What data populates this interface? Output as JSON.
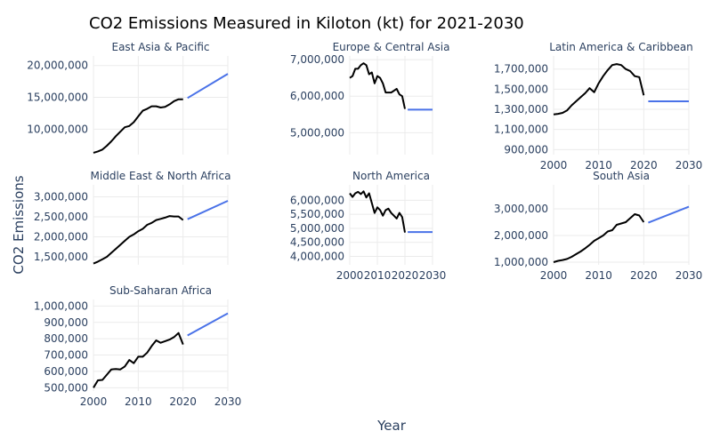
{
  "chart_data": {
    "type": "line",
    "title": "CO2 Emissions Measured in Kiloton (kt) for 2021-2030",
    "xlabel": "Year",
    "ylabel": "CO2 Emissions",
    "xlim": [
      2000,
      2030
    ],
    "x_ticks": [
      2000,
      2010,
      2020,
      2030
    ],
    "grid": true,
    "colors": {
      "history": "#000000",
      "forecast": "#4a72e8"
    },
    "panels": [
      {
        "name": "East Asia & Pacific",
        "ylim": [
          6000000,
          21500000
        ],
        "y_ticks": [
          10000000,
          15000000,
          20000000
        ],
        "y_tick_labels": [
          "10,000,000",
          "15,000,000",
          "20,000,000"
        ],
        "history": {
          "x": [
            2000,
            2001,
            2002,
            2003,
            2004,
            2005,
            2006,
            2007,
            2008,
            2009,
            2010,
            2011,
            2012,
            2013,
            2014,
            2015,
            2016,
            2017,
            2018,
            2019,
            2020
          ],
          "y": [
            6300000,
            6500000,
            6800000,
            7400000,
            8100000,
            8900000,
            9600000,
            10300000,
            10500000,
            11100000,
            12000000,
            12900000,
            13200000,
            13600000,
            13600000,
            13400000,
            13500000,
            13900000,
            14400000,
            14700000,
            14700000
          ]
        },
        "forecast": {
          "x": [
            2021,
            2030
          ],
          "y": [
            14900000,
            18700000
          ]
        }
      },
      {
        "name": "Europe & Central Asia",
        "ylim": [
          4400000,
          7100000
        ],
        "y_ticks": [
          5000000,
          6000000,
          7000000
        ],
        "y_tick_labels": [
          "5,000,000",
          "6,000,000",
          "7,000,000"
        ],
        "history": {
          "x": [
            2000,
            2001,
            2002,
            2003,
            2004,
            2005,
            2006,
            2007,
            2008,
            2009,
            2010,
            2011,
            2012,
            2013,
            2014,
            2015,
            2016,
            2017,
            2018,
            2019,
            2020
          ],
          "y": [
            6500000,
            6550000,
            6750000,
            6750000,
            6850000,
            6900000,
            6850000,
            6600000,
            6650000,
            6350000,
            6550000,
            6500000,
            6350000,
            6100000,
            6100000,
            6100000,
            6150000,
            6200000,
            6050000,
            6000000,
            5650000
          ]
        },
        "forecast": {
          "x": [
            2021,
            2030
          ],
          "y": [
            5630000,
            5630000
          ]
        }
      },
      {
        "name": "Latin America & Caribbean",
        "ylim": [
          850000,
          1830000
        ],
        "y_ticks": [
          900000,
          1100000,
          1300000,
          1500000,
          1700000
        ],
        "y_tick_labels": [
          "900,000",
          "1,100,000",
          "1,300,000",
          "1,500,000",
          "1,700,000"
        ],
        "history": {
          "x": [
            2000,
            2001,
            2002,
            2003,
            2004,
            2005,
            2006,
            2007,
            2008,
            2009,
            2010,
            2011,
            2012,
            2013,
            2014,
            2015,
            2016,
            2017,
            2018,
            2019,
            2020
          ],
          "y": [
            1250000,
            1255000,
            1265000,
            1290000,
            1340000,
            1380000,
            1420000,
            1460000,
            1510000,
            1470000,
            1560000,
            1630000,
            1690000,
            1740000,
            1750000,
            1740000,
            1700000,
            1680000,
            1630000,
            1620000,
            1440000
          ]
        },
        "forecast": {
          "x": [
            2021,
            2030
          ],
          "y": [
            1380000,
            1380000
          ]
        }
      },
      {
        "name": "Middle East & North Africa",
        "ylim": [
          1300000,
          3300000
        ],
        "y_ticks": [
          1500000,
          2000000,
          2500000,
          3000000
        ],
        "y_tick_labels": [
          "1,500,000",
          "2,000,000",
          "2,500,000",
          "3,000,000"
        ],
        "history": {
          "x": [
            2000,
            2001,
            2002,
            2003,
            2004,
            2005,
            2006,
            2007,
            2008,
            2009,
            2010,
            2011,
            2012,
            2013,
            2014,
            2015,
            2016,
            2017,
            2018,
            2019,
            2020
          ],
          "y": [
            1330000,
            1380000,
            1440000,
            1500000,
            1600000,
            1700000,
            1800000,
            1900000,
            2000000,
            2060000,
            2140000,
            2200000,
            2300000,
            2350000,
            2420000,
            2450000,
            2480000,
            2520000,
            2510000,
            2510000,
            2420000
          ]
        },
        "forecast": {
          "x": [
            2021,
            2030
          ],
          "y": [
            2440000,
            2900000
          ]
        }
      },
      {
        "name": "North America",
        "ylim": [
          3700000,
          6550000
        ],
        "y_ticks": [
          4000000,
          4500000,
          5000000,
          5500000,
          6000000
        ],
        "y_tick_labels": [
          "4,000,000",
          "4,500,000",
          "5,000,000",
          "5,500,000",
          "6,000,000"
        ],
        "history": {
          "x": [
            2000,
            2001,
            2002,
            2003,
            2004,
            2005,
            2006,
            2007,
            2008,
            2009,
            2010,
            2011,
            2012,
            2013,
            2014,
            2015,
            2016,
            2017,
            2018,
            2019,
            2020
          ],
          "y": [
            6250000,
            6120000,
            6250000,
            6300000,
            6220000,
            6320000,
            6100000,
            6250000,
            5900000,
            5550000,
            5750000,
            5650000,
            5450000,
            5650000,
            5700000,
            5550000,
            5450000,
            5350000,
            5550000,
            5400000,
            4850000
          ]
        },
        "forecast": {
          "x": [
            2021,
            2030
          ],
          "y": [
            4870000,
            4870000
          ]
        }
      },
      {
        "name": "South Asia",
        "ylim": [
          900000,
          3900000
        ],
        "y_ticks": [
          1000000,
          2000000,
          3000000
        ],
        "y_tick_labels": [
          "1,000,000",
          "2,000,000",
          "3,000,000"
        ],
        "history": {
          "x": [
            2000,
            2001,
            2002,
            2003,
            2004,
            2005,
            2006,
            2007,
            2008,
            2009,
            2010,
            2011,
            2012,
            2013,
            2014,
            2015,
            2016,
            2017,
            2018,
            2019,
            2020
          ],
          "y": [
            1000000,
            1050000,
            1080000,
            1120000,
            1200000,
            1300000,
            1400000,
            1520000,
            1650000,
            1800000,
            1900000,
            2000000,
            2150000,
            2200000,
            2400000,
            2450000,
            2500000,
            2650000,
            2800000,
            2750000,
            2500000
          ]
        },
        "forecast": {
          "x": [
            2021,
            2030
          ],
          "y": [
            2480000,
            3080000
          ]
        }
      },
      {
        "name": "Sub-Saharan Africa",
        "ylim": [
          480000,
          1040000
        ],
        "y_ticks": [
          500000,
          600000,
          700000,
          800000,
          900000,
          1000000
        ],
        "y_tick_labels": [
          "500,000",
          "600,000",
          "700,000",
          "800,000",
          "900,000",
          "1,000,000"
        ],
        "history": {
          "x": [
            2000,
            2001,
            2002,
            2003,
            2004,
            2005,
            2006,
            2007,
            2008,
            2009,
            2010,
            2011,
            2012,
            2013,
            2014,
            2015,
            2016,
            2017,
            2018,
            2019,
            2020
          ],
          "y": [
            500000,
            545000,
            548000,
            580000,
            612000,
            615000,
            612000,
            630000,
            670000,
            650000,
            690000,
            690000,
            715000,
            755000,
            790000,
            775000,
            785000,
            795000,
            810000,
            835000,
            765000
          ]
        },
        "forecast": {
          "x": [
            2021,
            2030
          ],
          "y": [
            820000,
            955000
          ]
        }
      }
    ]
  }
}
